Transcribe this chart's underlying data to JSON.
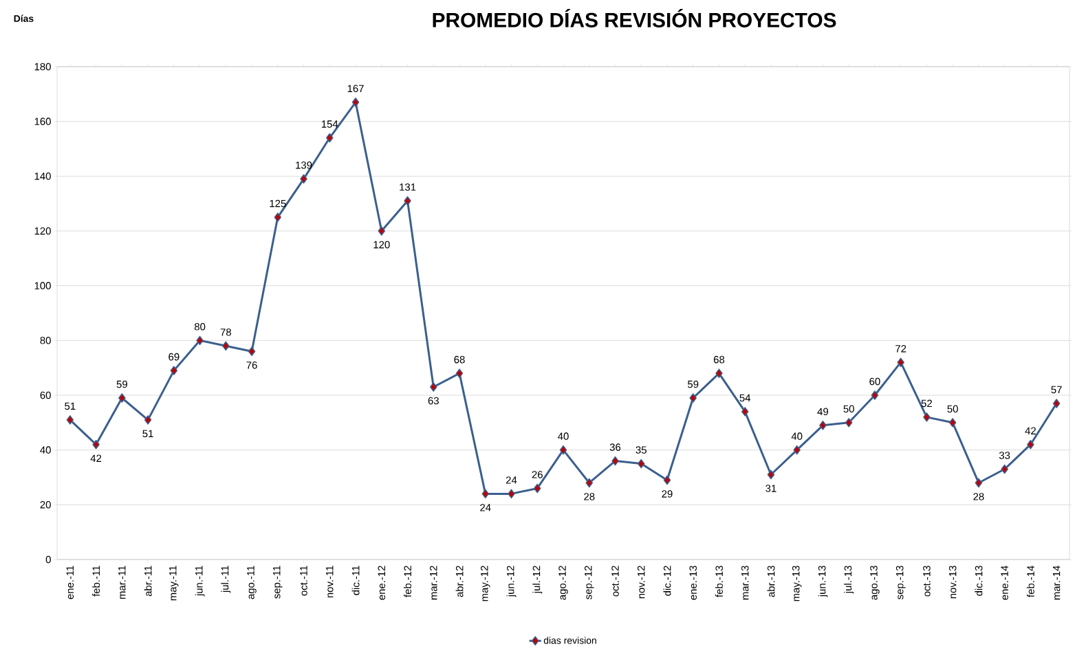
{
  "chart_data": {
    "type": "line",
    "title": "PROMEDIO DÍAS REVISIÓN PROYECTOS",
    "ylabel": "Días",
    "categories": [
      "ene.-11",
      "feb.-11",
      "mar.-11",
      "abr.-11",
      "may.-11",
      "jun.-11",
      "jul.-11",
      "ago.-11",
      "sep.-11",
      "oct.-11",
      "nov.-11",
      "dic.-11",
      "ene.-12",
      "feb.-12",
      "mar.-12",
      "abr.-12",
      "may.-12",
      "jun.-12",
      "jul.-12",
      "ago.-12",
      "sep.-12",
      "oct.-12",
      "nov.-12",
      "dic.-12",
      "ene.-13",
      "feb.-13",
      "mar.-13",
      "abr.-13",
      "may.-13",
      "jun.-13",
      "jul.-13",
      "ago.-13",
      "sep.-13",
      "oct.-13",
      "nov.-13",
      "dic.-13",
      "ene.-14",
      "feb.-14",
      "mar.-14"
    ],
    "series": [
      {
        "name": "dias revision",
        "color": "#3b5f8e",
        "values": [
          51,
          42,
          59,
          51,
          69,
          80,
          78,
          76,
          125,
          139,
          154,
          167,
          120,
          131,
          63,
          68,
          24,
          24,
          26,
          40,
          28,
          36,
          35,
          29,
          59,
          68,
          54,
          31,
          40,
          49,
          50,
          60,
          72,
          52,
          50,
          28,
          33,
          42,
          57
        ]
      }
    ],
    "ylim": [
      0,
      180
    ],
    "yticks": [
      0,
      20,
      40,
      60,
      80,
      100,
      120,
      140,
      160,
      180
    ],
    "grid": "y",
    "legend": "bottom",
    "marker": "diamond",
    "line_style": "solid",
    "data_labels": true
  }
}
